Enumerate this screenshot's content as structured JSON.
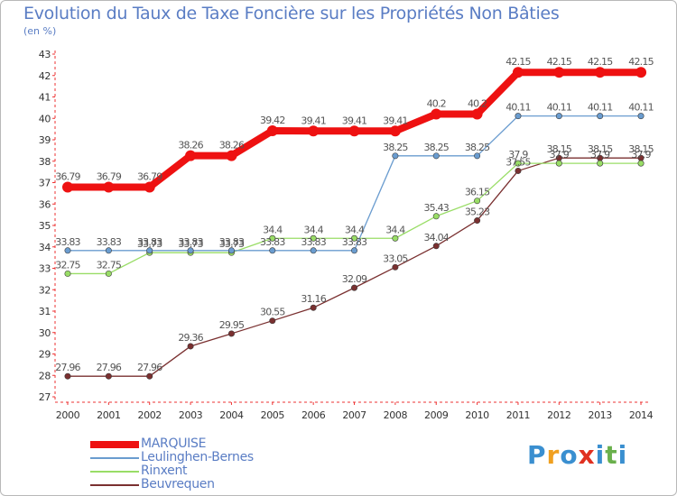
{
  "title": "Evolution du Taux de Taxe Foncière sur les Propriétés Non Bâties",
  "unit_label": "(en %)",
  "logo": {
    "text": "Proxiti",
    "colors": [
      "#3a8fd0",
      "#f0a020",
      "#3a8fd0",
      "#e03020",
      "#3a8fd0",
      "#6ab04c",
      "#3a8fd0"
    ]
  },
  "chart_data": {
    "type": "line",
    "title": "Evolution du Taux de Taxe Foncière sur les Propriétés Non Bâties",
    "ylabel": "(en %)",
    "xlabel": "",
    "x": [
      "2000",
      "2001",
      "2002",
      "2003",
      "2004",
      "2005",
      "2006",
      "2007",
      "2008",
      "2009",
      "2010",
      "2011",
      "2012",
      "2013",
      "2014"
    ],
    "ylim": [
      27,
      43
    ],
    "yticks": [
      27,
      28,
      29,
      30,
      31,
      32,
      33,
      34,
      35,
      36,
      37,
      38,
      39,
      40,
      41,
      42,
      43
    ],
    "grid": false,
    "legend_position": "bottom-left",
    "series": [
      {
        "name": "MARQUISE",
        "color": "#ee1111",
        "width": 8,
        "values": [
          36.79,
          36.79,
          36.79,
          38.26,
          38.26,
          39.42,
          39.41,
          39.41,
          39.41,
          40.2,
          40.2,
          42.15,
          42.15,
          42.15,
          42.15
        ],
        "labels": [
          "36.79",
          "36.79",
          "36.79",
          "38.26",
          "38.26",
          "39.42",
          "39.41",
          "39.41",
          "39.41",
          "40.2",
          "40.2",
          "42.15",
          "42.15",
          "42.15",
          "42.15"
        ]
      },
      {
        "name": "Leulinghen-Bernes",
        "color": "#6a9ccf",
        "width": 1.3,
        "values": [
          33.83,
          33.83,
          33.83,
          33.83,
          33.83,
          33.83,
          33.83,
          33.83,
          38.25,
          38.25,
          38.25,
          40.11,
          40.11,
          40.11,
          40.11
        ],
        "labels": [
          "33.83",
          "33.83",
          "33.83",
          "33.83",
          "33.83",
          "33.83",
          "33.83",
          "33.83",
          "38.25",
          "38.25",
          "38.25",
          "40.11",
          "40.11",
          "40.11",
          "40.11"
        ]
      },
      {
        "name": "Rinxent",
        "color": "#99dd66",
        "width": 1.3,
        "values": [
          32.75,
          32.75,
          33.73,
          33.73,
          33.73,
          34.4,
          34.4,
          34.4,
          34.4,
          35.43,
          36.15,
          37.9,
          37.9,
          37.9,
          37.9
        ],
        "labels": [
          "32.75",
          "32.75",
          "33.73",
          "33.73",
          "33.73",
          "34.4",
          "34.4",
          "34.4",
          "34.4",
          "35.43",
          "36.15",
          "37.9",
          "37.9",
          "37.9",
          "37.9"
        ]
      },
      {
        "name": "Beuvrequen",
        "color": "#7a3030",
        "width": 1.3,
        "values": [
          27.96,
          27.96,
          27.96,
          29.36,
          29.95,
          30.55,
          31.16,
          32.09,
          33.05,
          34.04,
          35.23,
          37.55,
          38.15,
          38.15,
          38.15
        ],
        "labels": [
          "27.96",
          "27.96",
          "27.96",
          "29.36",
          "29.95",
          "30.55",
          "31.16",
          "32.09",
          "33.05",
          "34.04",
          "35.23",
          "37.55",
          "38.15",
          "38.15",
          "38.15"
        ]
      }
    ]
  }
}
